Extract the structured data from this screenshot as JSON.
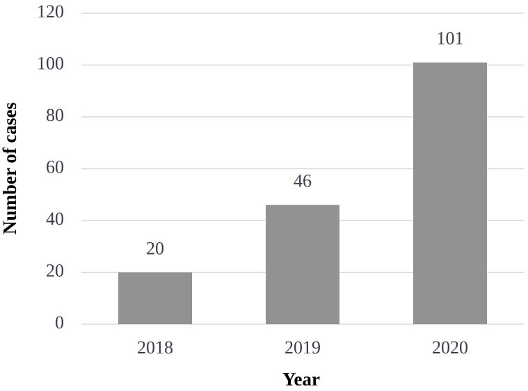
{
  "chart_data": {
    "type": "bar",
    "x_label": "Year",
    "y_label": "Number of cases",
    "categories": [
      "2018",
      "2019",
      "2020"
    ],
    "values": [
      20,
      46,
      101
    ],
    "color": "#929292",
    "ylim": [
      0,
      120
    ],
    "yticks": [
      0,
      20,
      40,
      60,
      80,
      100,
      120
    ],
    "grid": true
  }
}
